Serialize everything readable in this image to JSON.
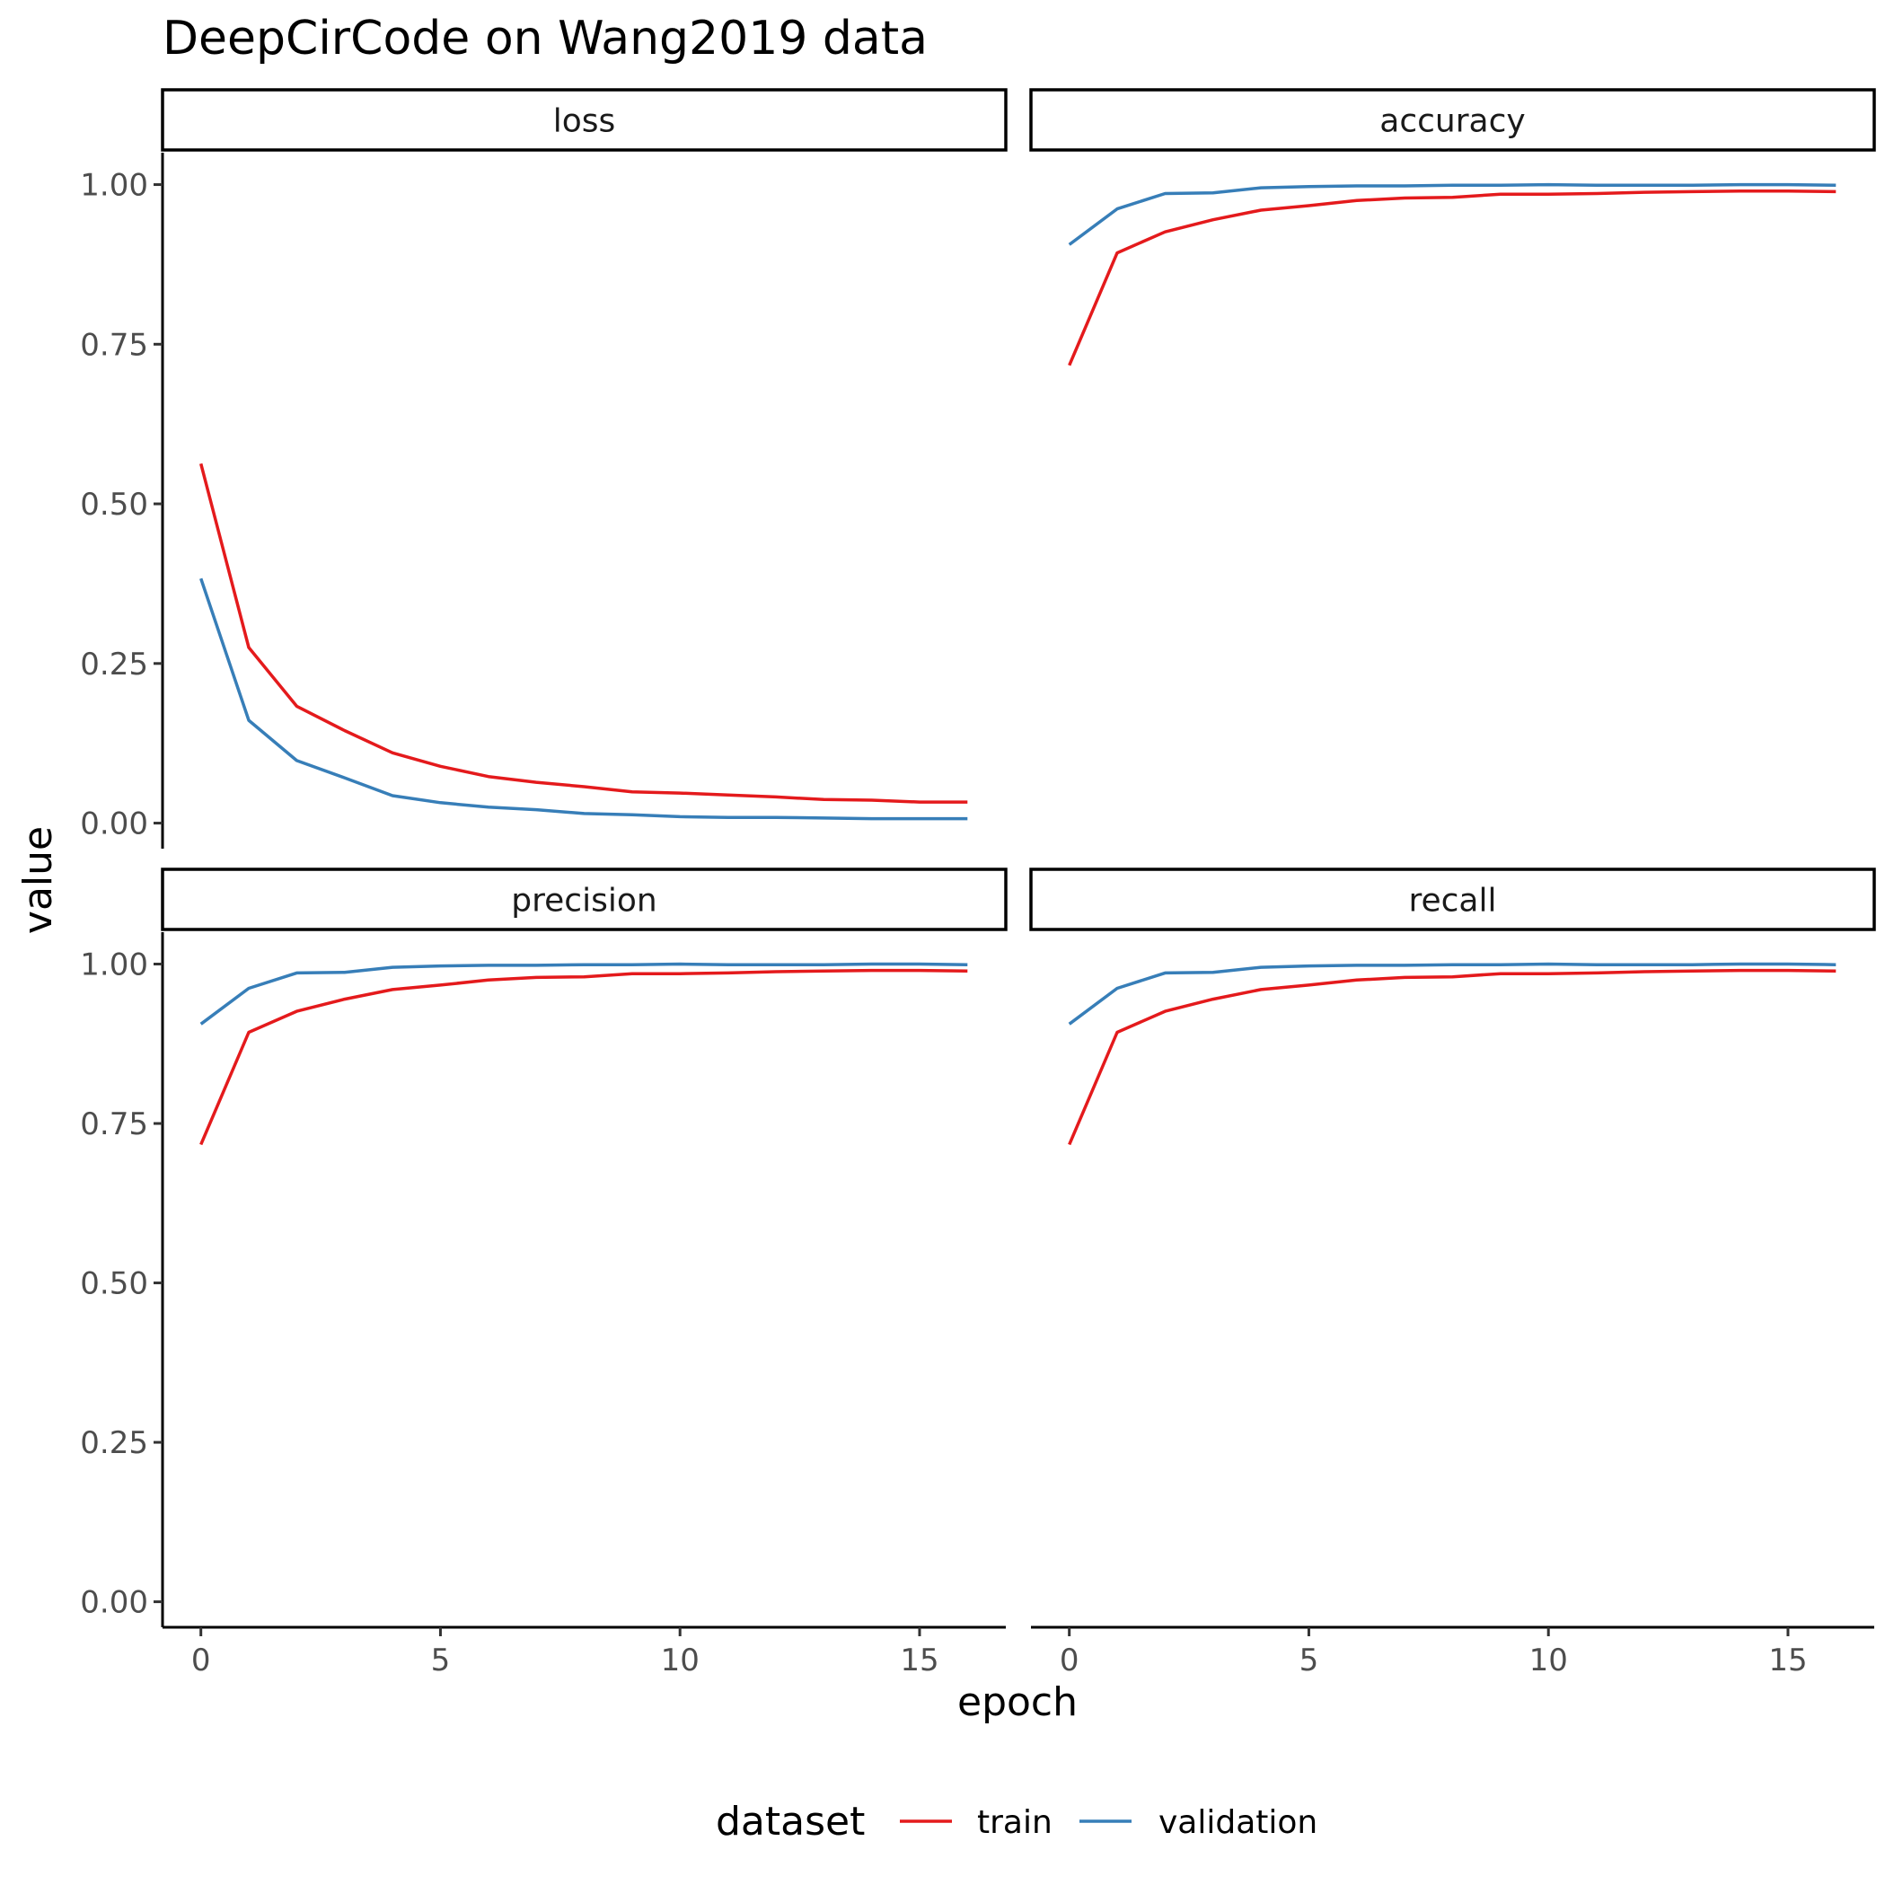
{
  "chart_data": {
    "type": "line",
    "title": "DeepCirCode on Wang2019 data",
    "xlabel": "epoch",
    "ylabel": "value",
    "xlim": [
      -0.8,
      16.8
    ],
    "ylim": [
      -0.04,
      1.05
    ],
    "x_ticks": [
      0,
      5,
      10,
      15
    ],
    "y_ticks": [
      0,
      0.25,
      0.5,
      0.75,
      1.0
    ],
    "y_tick_labels": [
      "0.00",
      "0.25",
      "0.50",
      "0.75",
      "1.00"
    ],
    "grid": false,
    "legend": {
      "title": "dataset",
      "position": "bottom",
      "entries": [
        {
          "label": "train",
          "color": "#E41A1C"
        },
        {
          "label": "validation",
          "color": "#377EB8"
        }
      ]
    },
    "facets": [
      {
        "label": "loss",
        "series": [
          {
            "name": "train",
            "color": "#E41A1C",
            "x": [
              0,
              1,
              2,
              3,
              4,
              5,
              6,
              7,
              8,
              9,
              10,
              11,
              12,
              13,
              14,
              15,
              16
            ],
            "values": [
              0.563,
              0.275,
              0.183,
              0.145,
              0.11,
              0.089,
              0.073,
              0.064,
              0.057,
              0.049,
              0.047,
              0.044,
              0.041,
              0.037,
              0.036,
              0.033,
              0.033
            ]
          },
          {
            "name": "validation",
            "color": "#377EB8",
            "x": [
              0,
              1,
              2,
              3,
              4,
              5,
              6,
              7,
              8,
              9,
              10,
              11,
              12,
              13,
              14,
              15,
              16
            ],
            "values": [
              0.383,
              0.161,
              0.098,
              0.071,
              0.043,
              0.032,
              0.025,
              0.021,
              0.015,
              0.013,
              0.01,
              0.009,
              0.009,
              0.008,
              0.007,
              0.007,
              0.007
            ]
          }
        ]
      },
      {
        "label": "accuracy",
        "series": [
          {
            "name": "train",
            "color": "#E41A1C",
            "x": [
              0,
              1,
              2,
              3,
              4,
              5,
              6,
              7,
              8,
              9,
              10,
              11,
              12,
              13,
              14,
              15,
              16
            ],
            "values": [
              0.717,
              0.893,
              0.926,
              0.945,
              0.96,
              0.967,
              0.975,
              0.979,
              0.98,
              0.985,
              0.985,
              0.986,
              0.988,
              0.989,
              0.99,
              0.99,
              0.989
            ]
          },
          {
            "name": "validation",
            "color": "#377EB8",
            "x": [
              0,
              1,
              2,
              3,
              4,
              5,
              6,
              7,
              8,
              9,
              10,
              11,
              12,
              13,
              14,
              15,
              16
            ],
            "values": [
              0.906,
              0.962,
              0.986,
              0.987,
              0.995,
              0.997,
              0.998,
              0.998,
              0.999,
              0.999,
              1.0,
              0.999,
              0.999,
              0.999,
              1.0,
              1.0,
              0.999
            ]
          }
        ]
      },
      {
        "label": "precision",
        "series": [
          {
            "name": "train",
            "color": "#E41A1C",
            "x": [
              0,
              1,
              2,
              3,
              4,
              5,
              6,
              7,
              8,
              9,
              10,
              11,
              12,
              13,
              14,
              15,
              16
            ],
            "values": [
              0.717,
              0.893,
              0.926,
              0.945,
              0.96,
              0.967,
              0.975,
              0.979,
              0.98,
              0.985,
              0.985,
              0.986,
              0.988,
              0.989,
              0.99,
              0.99,
              0.989
            ]
          },
          {
            "name": "validation",
            "color": "#377EB8",
            "x": [
              0,
              1,
              2,
              3,
              4,
              5,
              6,
              7,
              8,
              9,
              10,
              11,
              12,
              13,
              14,
              15,
              16
            ],
            "values": [
              0.906,
              0.962,
              0.986,
              0.987,
              0.995,
              0.997,
              0.998,
              0.998,
              0.999,
              0.999,
              1.0,
              0.999,
              0.999,
              0.999,
              1.0,
              1.0,
              0.999
            ]
          }
        ]
      },
      {
        "label": "recall",
        "series": [
          {
            "name": "train",
            "color": "#E41A1C",
            "x": [
              0,
              1,
              2,
              3,
              4,
              5,
              6,
              7,
              8,
              9,
              10,
              11,
              12,
              13,
              14,
              15,
              16
            ],
            "values": [
              0.717,
              0.893,
              0.926,
              0.945,
              0.96,
              0.967,
              0.975,
              0.979,
              0.98,
              0.985,
              0.985,
              0.986,
              0.988,
              0.989,
              0.99,
              0.99,
              0.989
            ]
          },
          {
            "name": "validation",
            "color": "#377EB8",
            "x": [
              0,
              1,
              2,
              3,
              4,
              5,
              6,
              7,
              8,
              9,
              10,
              11,
              12,
              13,
              14,
              15,
              16
            ],
            "values": [
              0.906,
              0.962,
              0.986,
              0.987,
              0.995,
              0.997,
              0.998,
              0.998,
              0.999,
              0.999,
              1.0,
              0.999,
              0.999,
              0.999,
              1.0,
              1.0,
              0.999
            ]
          }
        ]
      }
    ]
  }
}
